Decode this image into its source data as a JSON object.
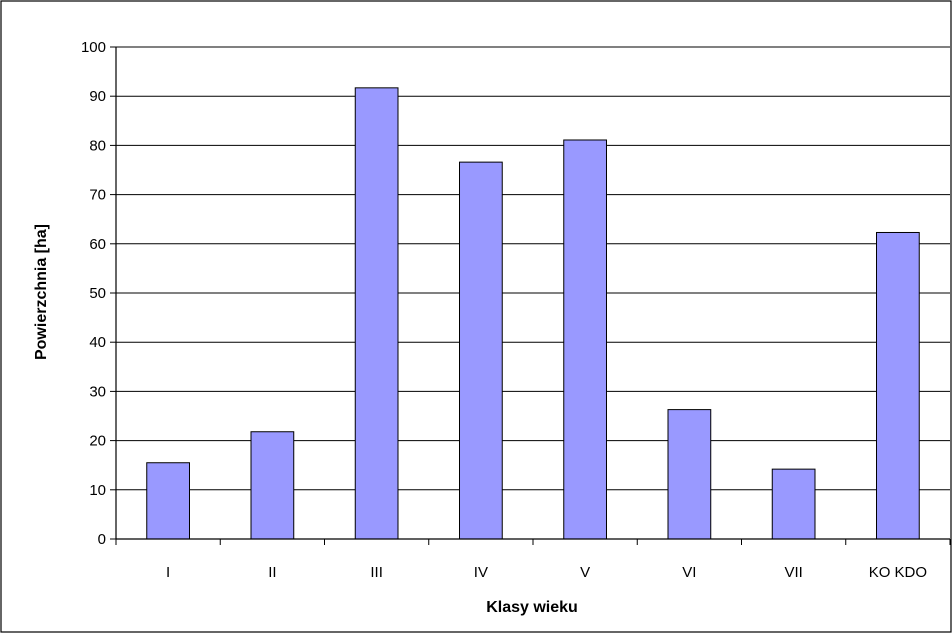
{
  "chart_data": {
    "type": "bar",
    "title": "",
    "xlabel": "Klasy wieku",
    "ylabel": "Powierzchnia [ha]",
    "categories": [
      "I",
      "II",
      "III",
      "IV",
      "V",
      "VI",
      "VII",
      "KO KDO"
    ],
    "values": [
      15.5,
      21.8,
      91.7,
      76.6,
      81.1,
      26.3,
      14.2,
      62.3
    ],
    "ylim": [
      0,
      100
    ],
    "yticks": [
      "0",
      "10",
      "20",
      "30",
      "40",
      "50",
      "60",
      "70",
      "80",
      "90",
      "100"
    ],
    "grid": true,
    "legend": "none",
    "bar_color": "#9999ff",
    "bar_stroke": "#000000"
  }
}
